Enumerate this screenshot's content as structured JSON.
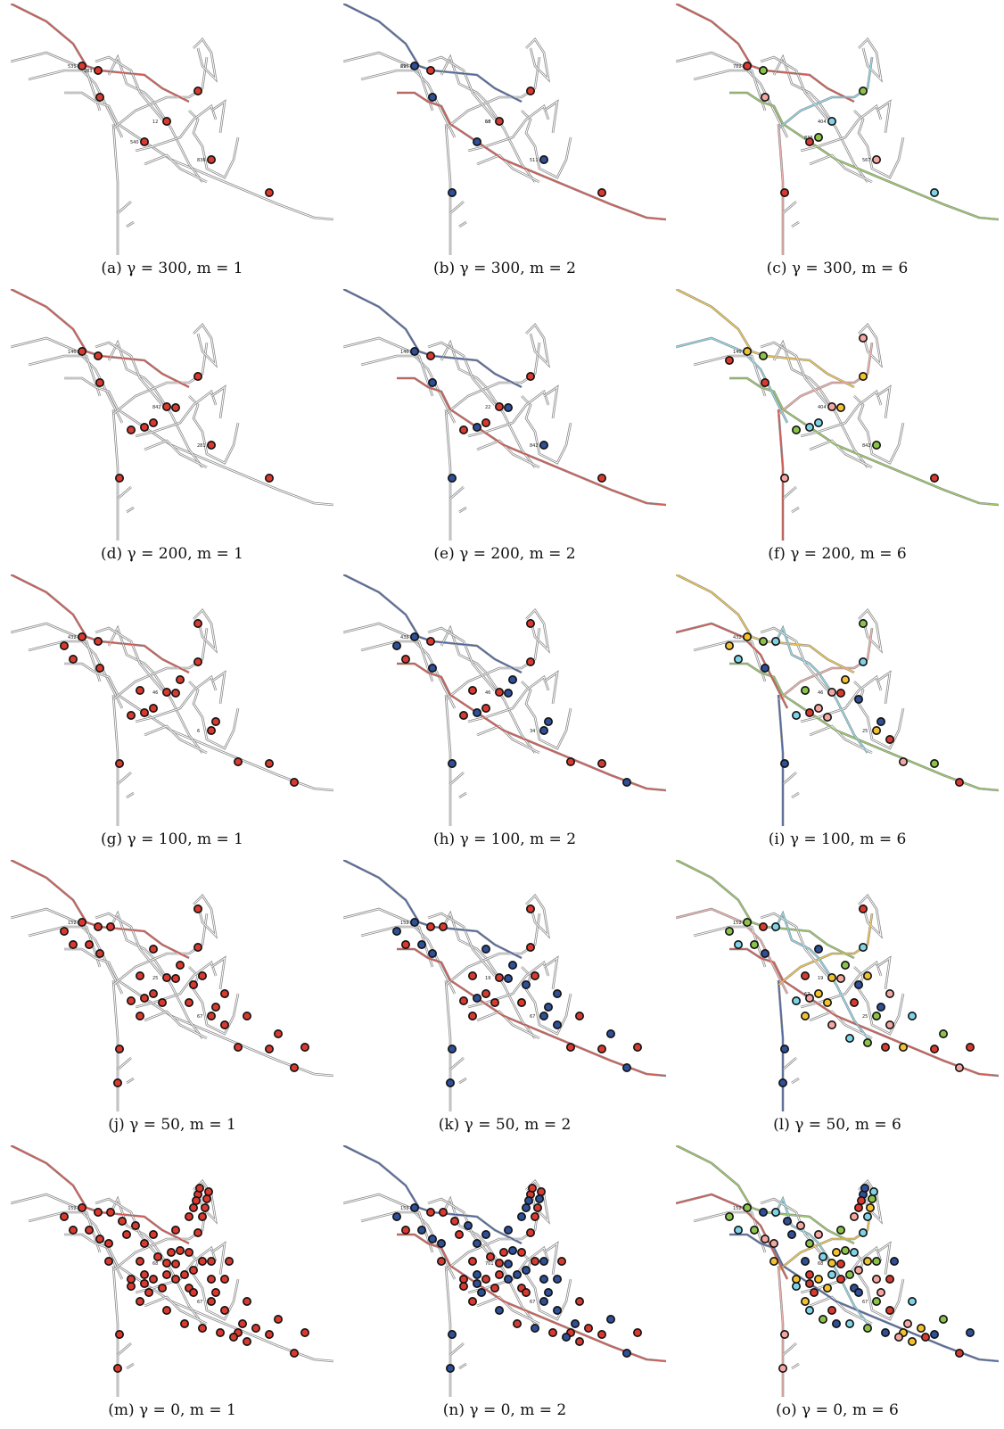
{
  "panels": [
    {
      "id": "a",
      "letter": "(a)",
      "gamma": 300,
      "m": 1,
      "caption": "(a) γ = 300, m = 1",
      "stops": 8,
      "colors": [
        "#d93a30"
      ],
      "labels": [
        "531",
        "12",
        "836",
        "283",
        "540"
      ]
    },
    {
      "id": "b",
      "letter": "(b)",
      "gamma": 300,
      "m": 2,
      "caption": "(b) γ = 300, m = 2",
      "stops": 9,
      "colors": [
        "#2f4f96",
        "#d93a30"
      ],
      "labels": [
        "29",
        "58",
        "511",
        "616",
        "60"
      ]
    },
    {
      "id": "c",
      "letter": "(c)",
      "gamma": 300,
      "m": 6,
      "caption": "(c) γ = 300, m = 6",
      "stops": 10,
      "colors": [
        "#d93a30",
        "#8bc34a",
        "#f4a6a0",
        "#7fd3e6"
      ],
      "labels": [
        "782",
        "404",
        "567",
        "836"
      ]
    },
    {
      "id": "d",
      "letter": "(d)",
      "gamma": 200,
      "m": 1,
      "caption": "(d) γ = 200, m = 1",
      "stops": 12,
      "colors": [
        "#d93a30"
      ],
      "labels": [
        "140",
        "842",
        "281"
      ]
    },
    {
      "id": "e",
      "letter": "(e)",
      "gamma": 200,
      "m": 2,
      "caption": "(e) γ = 200, m = 2",
      "stops": 12,
      "colors": [
        "#2f4f96",
        "#d93a30"
      ],
      "labels": [
        "140",
        "22",
        "842"
      ]
    },
    {
      "id": "f",
      "letter": "(f)",
      "gamma": 200,
      "m": 6,
      "caption": "(f) γ = 200, m = 6",
      "stops": 14,
      "colors": [
        "#f2c12e",
        "#8bc34a",
        "#d93a30",
        "#f4a6a0",
        "#7fd3e6"
      ],
      "labels": [
        "140",
        "404",
        "842"
      ]
    },
    {
      "id": "g",
      "letter": "(g)",
      "gamma": 100,
      "m": 1,
      "caption": "(g) γ = 100, m = 1",
      "stops": 20,
      "colors": [
        "#d93a30"
      ],
      "labels": [
        "432",
        "46",
        "6"
      ]
    },
    {
      "id": "h",
      "letter": "(h)",
      "gamma": 100,
      "m": 2,
      "caption": "(h) γ = 100, m = 2",
      "stops": 20,
      "colors": [
        "#2f4f96",
        "#d93a30"
      ],
      "labels": [
        "432",
        "46",
        "34"
      ]
    },
    {
      "id": "i",
      "letter": "(i)",
      "gamma": 100,
      "m": 6,
      "caption": "(i) γ = 100, m = 6",
      "stops": 24,
      "colors": [
        "#f2c12e",
        "#8bc34a",
        "#2f4f96",
        "#f4a6a0",
        "#d93a30",
        "#7fd3e6"
      ],
      "labels": [
        "432",
        "46",
        "25"
      ]
    },
    {
      "id": "j",
      "letter": "(j)",
      "gamma": 50,
      "m": 1,
      "caption": "(j) γ = 50, m = 1",
      "stops": 34,
      "colors": [
        "#d93a30"
      ],
      "labels": [
        "152",
        "25",
        "67"
      ]
    },
    {
      "id": "k",
      "letter": "(k)",
      "gamma": 50,
      "m": 2,
      "caption": "(k) γ = 50, m = 2",
      "stops": 34,
      "colors": [
        "#2f4f96",
        "#d93a30"
      ],
      "labels": [
        "152",
        "19",
        "67"
      ]
    },
    {
      "id": "l",
      "letter": "(l)",
      "gamma": 50,
      "m": 6,
      "caption": "(l) γ = 50, m = 6",
      "stops": 38,
      "colors": [
        "#8bc34a",
        "#d93a30",
        "#2f4f96",
        "#f2c12e",
        "#f4a6a0",
        "#7fd3e6"
      ],
      "labels": [
        "152",
        "19",
        "25",
        "67"
      ]
    },
    {
      "id": "m",
      "letter": "(m)",
      "gamma": 0,
      "m": 1,
      "caption": "(m) γ = 0, m = 1",
      "stops": 70,
      "colors": [
        "#d93a30"
      ],
      "labels": [
        "152",
        "68",
        "67"
      ]
    },
    {
      "id": "n",
      "letter": "(n)",
      "gamma": 0,
      "m": 2,
      "caption": "(n) γ = 0, m = 2",
      "stops": 70,
      "colors": [
        "#2f4f96",
        "#d93a30"
      ],
      "labels": [
        "152",
        "701",
        "67"
      ]
    },
    {
      "id": "o",
      "letter": "(o)",
      "gamma": 0,
      "m": 6,
      "caption": "(o) γ = 0, m = 6",
      "stops": 74,
      "colors": [
        "#8bc34a",
        "#2f4f96",
        "#f4a6a0",
        "#f2c12e",
        "#d93a30",
        "#7fd3e6"
      ],
      "labels": [
        "152",
        "68",
        "67"
      ]
    }
  ]
}
